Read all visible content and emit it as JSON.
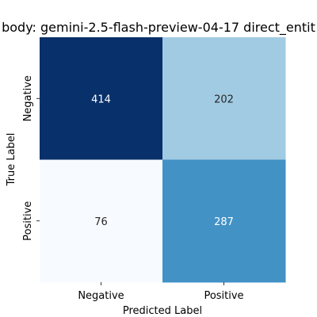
{
  "chart_data": {
    "type": "heatmap",
    "title": "body: gemini-2.5-flash-preview-04-17 direct_entit",
    "xlabel": "Predicted Label",
    "ylabel": "True Label",
    "x_categories": [
      "Negative",
      "Positive"
    ],
    "y_categories": [
      "Negative",
      "Positive"
    ],
    "values": [
      [
        414,
        202
      ],
      [
        76,
        287
      ]
    ],
    "cell_colors": [
      [
        "#08306b",
        "#a1cbe2"
      ],
      [
        "#f7fbff",
        "#4292c6"
      ]
    ],
    "cell_text_colors": [
      [
        "#ffffff",
        "#262626"
      ],
      [
        "#262626",
        "#ffffff"
      ]
    ],
    "colormap": "Blues",
    "colorbar": false
  }
}
